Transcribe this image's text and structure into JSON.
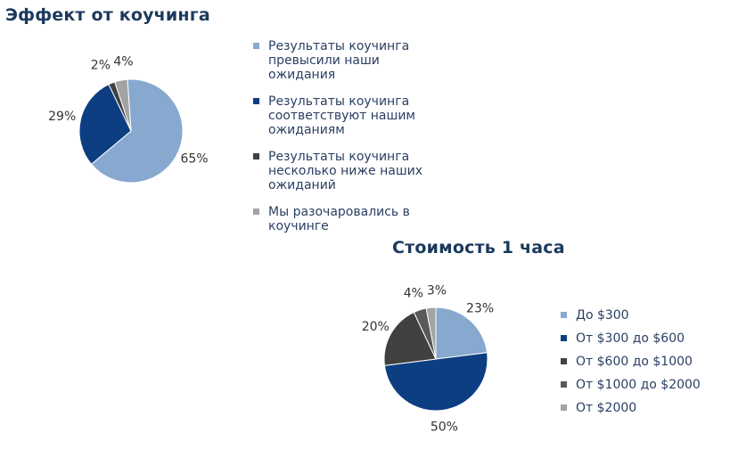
{
  "chart_data": [
    {
      "type": "pie",
      "title": "Эффект от коучинга",
      "legend_position": "right",
      "start_angle_deg": -4,
      "slices": [
        {
          "label": "Результаты коучинга превысили наши ожидания",
          "value": 65,
          "value_label": "65%",
          "color": "#87a8cf"
        },
        {
          "label": "Результаты коучинга соответствуют нашим ожиданиям",
          "value": 29,
          "value_label": "29%",
          "color": "#0d3e82"
        },
        {
          "label": "Результаты коучинга несколько ниже наших ожиданий",
          "value": 2,
          "value_label": "2%",
          "color": "#404040"
        },
        {
          "label": "Мы разочаровались в коучинге",
          "value": 4,
          "value_label": "4%",
          "color": "#a3a3a3"
        }
      ]
    },
    {
      "type": "pie",
      "title": "Стоимость 1 часа",
      "legend_position": "right",
      "start_angle_deg": 0,
      "slices": [
        {
          "label": "До $300",
          "value": 23,
          "value_label": "23%",
          "color": "#87a8cf"
        },
        {
          "label": "От $300 до $600",
          "value": 50,
          "value_label": "50%",
          "color": "#0d3e82"
        },
        {
          "label": "От $600 до $1000",
          "value": 20,
          "value_label": "20%",
          "color": "#404040"
        },
        {
          "label": "От $1000 до $2000",
          "value": 4,
          "value_label": "4%",
          "color": "#595959"
        },
        {
          "label": "От $2000",
          "value": 3,
          "value_label": "3%",
          "color": "#a3a3a3"
        }
      ]
    }
  ]
}
